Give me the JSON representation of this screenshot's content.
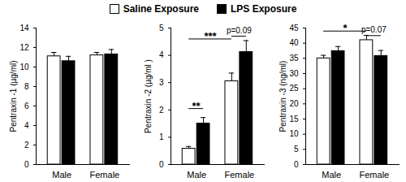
{
  "chart_data": [
    {
      "type": "bar",
      "y_label": "Pentraxin -1 (µg/ml)",
      "legend": "top",
      "categories": [
        "Male",
        "Female"
      ],
      "series": [
        {
          "name": "Saline Exposure",
          "color": "#ffffff",
          "values": [
            11.1,
            11.2
          ],
          "errors": [
            0.4,
            0.3
          ]
        },
        {
          "name": "LPS Exposure",
          "color": "#000000",
          "values": [
            10.6,
            11.3
          ],
          "errors": [
            0.5,
            0.5
          ]
        }
      ],
      "ylim": [
        0,
        14
      ],
      "yticks": [
        0,
        2,
        4,
        6,
        8,
        10,
        12,
        14
      ]
    },
    {
      "type": "bar",
      "y_label": "Pentraxin -2 (µg/ml )",
      "categories": [
        "Male",
        "Female"
      ],
      "series": [
        {
          "name": "Saline Exposure",
          "color": "#ffffff",
          "values": [
            0.58,
            3.05
          ],
          "errors": [
            0.08,
            0.3
          ]
        },
        {
          "name": "LPS Exposure",
          "color": "#000000",
          "values": [
            1.5,
            4.12
          ],
          "errors": [
            0.22,
            0.42
          ]
        }
      ],
      "ylim": [
        0,
        5
      ],
      "yticks": [
        0,
        1,
        2,
        3,
        4,
        5
      ],
      "annotations": [
        {
          "text": "**",
          "from": [
            "Male",
            "Saline Exposure"
          ],
          "to": [
            "Male",
            "LPS Exposure"
          ],
          "y": 2.05
        },
        {
          "text": "***",
          "from": [
            "Male",
            "Saline Exposure"
          ],
          "to": [
            "Female",
            "Saline Exposure"
          ],
          "y": 4.6
        },
        {
          "text": "p=0.09",
          "from": [
            "Female",
            "Saline Exposure"
          ],
          "to": [
            "Female",
            "LPS Exposure"
          ],
          "y": 4.7
        }
      ]
    },
    {
      "type": "bar",
      "y_label": "Pentraxin -3 (ng/ml)",
      "categories": [
        "Male",
        "Female"
      ],
      "series": [
        {
          "name": "Saline Exposure",
          "color": "#ffffff",
          "values": [
            35.0,
            41.0
          ],
          "errors": [
            1.0,
            1.6
          ]
        },
        {
          "name": "LPS Exposure",
          "color": "#000000",
          "values": [
            37.4,
            35.8
          ],
          "errors": [
            1.5,
            1.8
          ]
        }
      ],
      "ylim": [
        0,
        45
      ],
      "yticks": [
        0,
        5,
        10,
        15,
        20,
        25,
        30,
        35,
        40,
        45
      ],
      "annotations": [
        {
          "text": "*",
          "from": [
            "Male",
            "Saline Exposure"
          ],
          "to": [
            "Female",
            "Saline Exposure"
          ],
          "y": 44
        },
        {
          "text": "p=0.07",
          "from": [
            "Female",
            "Saline Exposure"
          ],
          "to": [
            "Female",
            "LPS Exposure"
          ],
          "y": 42.5
        }
      ]
    }
  ]
}
